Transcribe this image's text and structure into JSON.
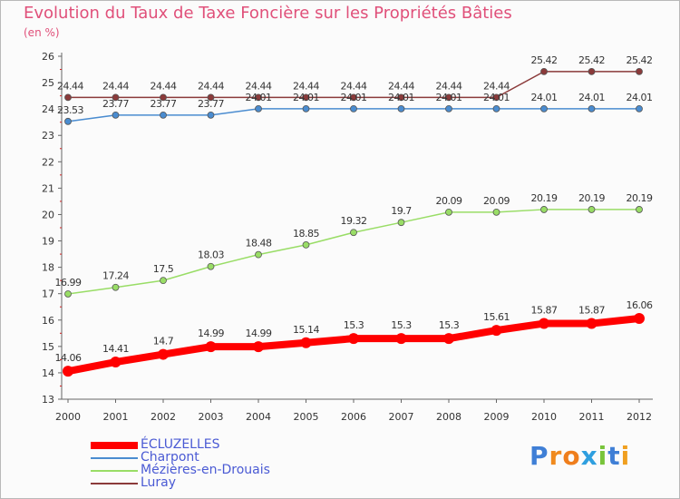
{
  "chart_data": {
    "type": "line",
    "title": "Evolution du Taux de Taxe Foncière sur les Propriétés Bâties",
    "subtitle": "(en %)",
    "xlabel": "",
    "ylabel": "",
    "x": [
      "2000",
      "2001",
      "2002",
      "2003",
      "2004",
      "2005",
      "2006",
      "2007",
      "2008",
      "2009",
      "2010",
      "2011",
      "2012"
    ],
    "ylim": [
      13,
      26
    ],
    "yticks": [
      "13",
      "14",
      "15",
      "16",
      "17",
      "18",
      "19",
      "20",
      "21",
      "22",
      "23",
      "24",
      "25",
      "26"
    ],
    "grid": false,
    "legend_position": "bottom-left",
    "series": [
      {
        "name": "ÉCLUZELLES",
        "color": "#ff0000",
        "values": [
          14.06,
          14.41,
          14.7,
          14.99,
          14.99,
          15.14,
          15.3,
          15.3,
          15.3,
          15.61,
          15.87,
          15.87,
          16.06
        ],
        "labels": [
          "14.06",
          "14.41",
          "14.7",
          "14.99",
          "14.99",
          "15.14",
          "15.3",
          "15.3",
          "15.3",
          "15.61",
          "15.87",
          "15.87",
          "16.06"
        ]
      },
      {
        "name": "Charpont",
        "color": "#4a8cd0",
        "values": [
          23.53,
          23.77,
          23.77,
          23.77,
          24.01,
          24.01,
          24.01,
          24.01,
          24.01,
          24.01,
          24.01,
          24.01,
          24.01
        ],
        "labels": [
          "23.53",
          "23.77",
          "23.77",
          "23.77",
          "24.01",
          "24.01",
          "24.01",
          "24.01",
          "24.01",
          "24.01",
          "24.01",
          "24.01",
          "24.01"
        ]
      },
      {
        "name": "Mézières-en-Drouais",
        "color": "#99dd66",
        "values": [
          16.99,
          17.24,
          17.5,
          18.03,
          18.48,
          18.85,
          19.32,
          19.7,
          20.09,
          20.09,
          20.19,
          20.19,
          20.19
        ],
        "labels": [
          "16.99",
          "17.24",
          "17.5",
          "18.03",
          "18.48",
          "18.85",
          "19.32",
          "19.7",
          "20.09",
          "20.09",
          "20.19",
          "20.19",
          "20.19"
        ]
      },
      {
        "name": "Luray",
        "color": "#8b3a3a",
        "values": [
          24.44,
          24.44,
          24.44,
          24.44,
          24.44,
          24.44,
          24.44,
          24.44,
          24.44,
          24.44,
          25.42,
          25.42,
          25.42
        ],
        "labels": [
          "24.44",
          "24.44",
          "24.44",
          "24.44",
          "24.44",
          "24.44",
          "24.44",
          "24.44",
          "24.44",
          "24.44",
          "25.42",
          "25.42",
          "25.42"
        ]
      }
    ]
  },
  "logo": {
    "text": "Proxiti",
    "letters": [
      {
        "ch": "P",
        "color": "#3f7fd6"
      },
      {
        "ch": "r",
        "color": "#f08a1e"
      },
      {
        "ch": "o",
        "color": "#ef7e1c"
      },
      {
        "ch": "x",
        "color": "#2f9fdf"
      },
      {
        "ch": "i",
        "color": "#78c43a"
      },
      {
        "ch": "t",
        "color": "#3f7fd6"
      },
      {
        "ch": "i",
        "color": "#f0a020"
      }
    ]
  }
}
